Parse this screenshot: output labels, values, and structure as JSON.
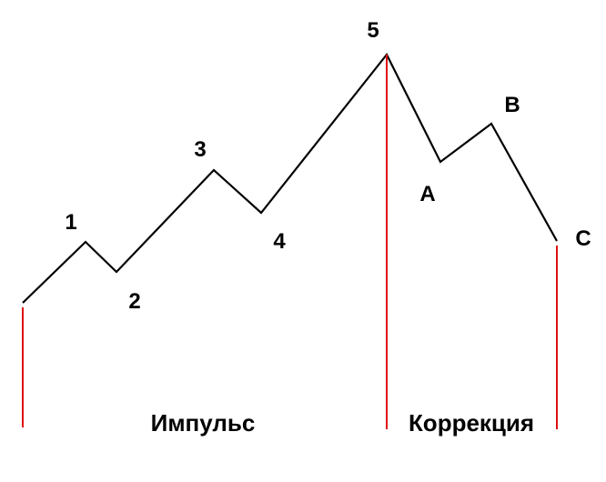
{
  "colors": {
    "wave": "#000000",
    "divider": "#e01010",
    "background": "#ffffff"
  },
  "waves": {
    "impulse": [
      "1",
      "2",
      "3",
      "4",
      "5"
    ],
    "correction": [
      "A",
      "B",
      "C"
    ]
  },
  "phases": {
    "impulse": "Импульс",
    "correction": "Коррекция"
  }
}
